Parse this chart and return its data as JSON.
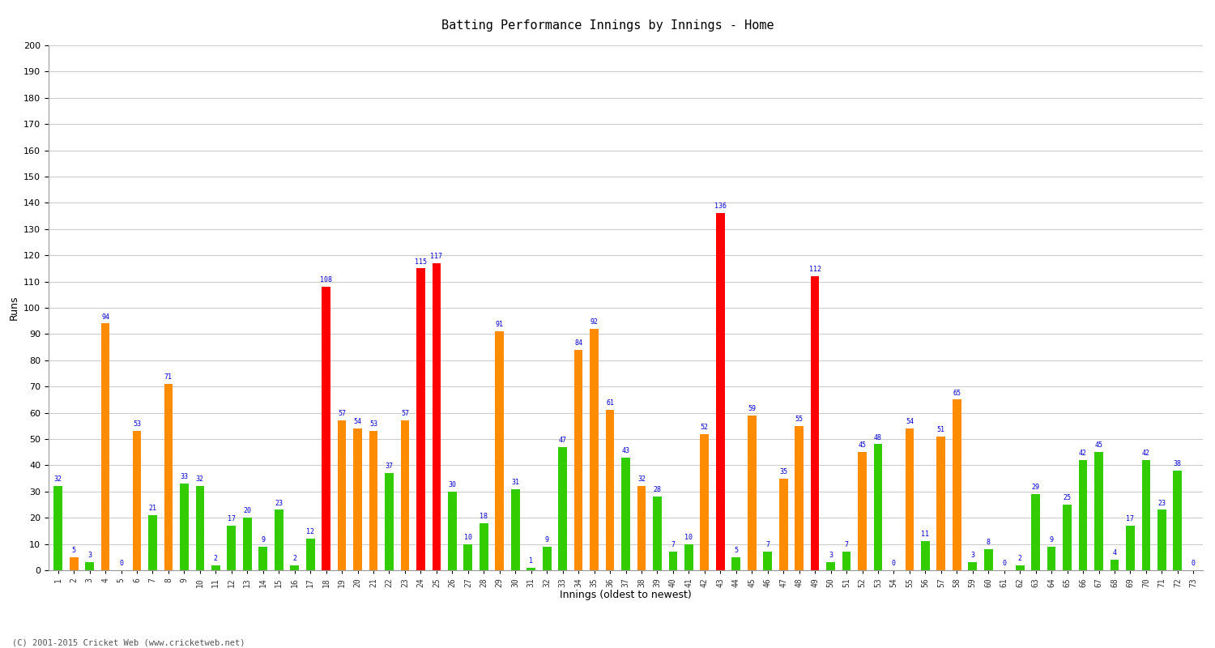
{
  "title": "Batting Performance Innings by Innings - Home",
  "xlabel": "Innings (oldest to newest)",
  "ylabel": "Runs",
  "background_color": "#ffffff",
  "grid_color": "#cccccc",
  "label_color": "#0000cc",
  "innings": [
    1,
    2,
    3,
    4,
    5,
    6,
    7,
    8,
    9,
    10,
    11,
    12,
    13,
    14,
    15,
    16,
    17,
    18,
    19,
    20,
    21,
    22,
    23,
    24,
    25,
    26,
    27,
    28,
    29,
    30,
    31,
    32,
    33,
    34,
    35,
    36,
    37,
    38,
    39,
    40,
    41,
    42,
    43,
    44,
    45,
    46,
    47,
    48,
    49,
    50,
    51,
    52,
    53,
    54,
    55,
    56,
    57,
    58,
    59,
    60,
    61,
    62,
    63,
    64,
    65,
    66,
    67,
    68,
    69,
    70,
    71,
    72,
    73
  ],
  "values": [
    32,
    5,
    3,
    94,
    0,
    53,
    21,
    71,
    33,
    32,
    2,
    17,
    20,
    9,
    23,
    2,
    12,
    108,
    57,
    54,
    53,
    37,
    57,
    115,
    117,
    30,
    10,
    18,
    91,
    31,
    1,
    9,
    47,
    84,
    92,
    61,
    43,
    32,
    28,
    7,
    10,
    52,
    136,
    5,
    59,
    7,
    35,
    55,
    112,
    3,
    7,
    45,
    48,
    0,
    54,
    11,
    51,
    65,
    3,
    8,
    0,
    2,
    29,
    9,
    25,
    42,
    45,
    4,
    17,
    42,
    23,
    38,
    0
  ],
  "colors": [
    "#33cc00",
    "#ff8c00",
    "#33cc00",
    "#ff8c00",
    "#33cc00",
    "#ff8c00",
    "#33cc00",
    "#ff8c00",
    "#33cc00",
    "#33cc00",
    "#33cc00",
    "#33cc00",
    "#33cc00",
    "#33cc00",
    "#33cc00",
    "#33cc00",
    "#33cc00",
    "#ff0000",
    "#ff8c00",
    "#ff8c00",
    "#ff8c00",
    "#33cc00",
    "#ff8c00",
    "#ff0000",
    "#ff0000",
    "#33cc00",
    "#33cc00",
    "#33cc00",
    "#ff8c00",
    "#33cc00",
    "#33cc00",
    "#33cc00",
    "#33cc00",
    "#ff8c00",
    "#ff8c00",
    "#ff8c00",
    "#33cc00",
    "#ff8c00",
    "#33cc00",
    "#33cc00",
    "#33cc00",
    "#ff8c00",
    "#ff0000",
    "#33cc00",
    "#ff8c00",
    "#33cc00",
    "#ff8c00",
    "#ff8c00",
    "#ff0000",
    "#33cc00",
    "#33cc00",
    "#ff8c00",
    "#33cc00",
    "#33cc00",
    "#ff8c00",
    "#33cc00",
    "#ff8c00",
    "#ff8c00",
    "#33cc00",
    "#33cc00",
    "#33cc00",
    "#33cc00",
    "#33cc00",
    "#33cc00",
    "#33cc00",
    "#33cc00",
    "#33cc00",
    "#33cc00",
    "#33cc00",
    "#33cc00",
    "#33cc00",
    "#33cc00",
    "#33cc00"
  ],
  "ylim": [
    0,
    200
  ],
  "yticks": [
    0,
    10,
    20,
    30,
    40,
    50,
    60,
    70,
    80,
    90,
    100,
    110,
    120,
    130,
    140,
    150,
    160,
    170,
    180,
    190,
    200
  ],
  "footer": "(C) 2001-2015 Cricket Web (www.cricketweb.net)",
  "title_fontsize": 11,
  "bar_width": 0.55
}
